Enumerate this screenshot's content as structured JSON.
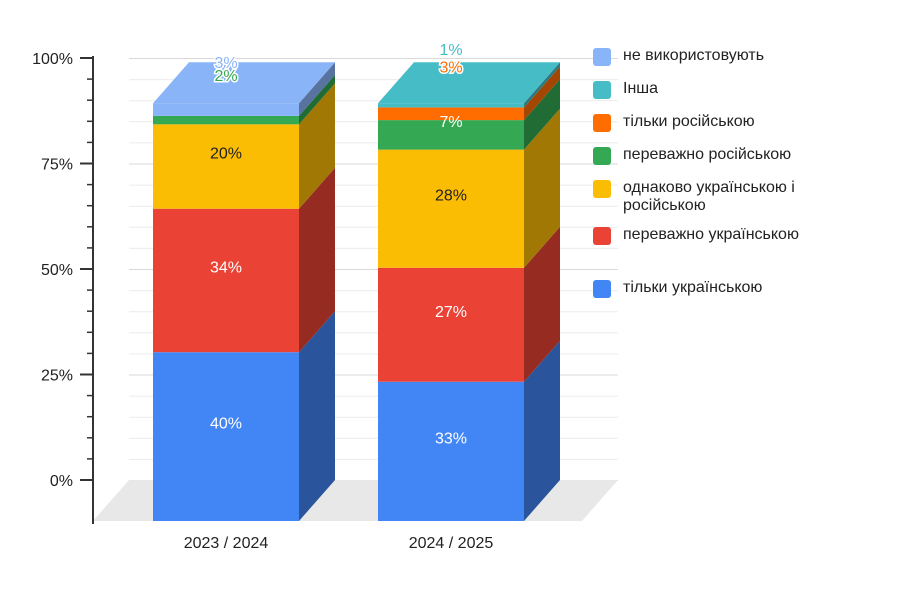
{
  "chart_data": {
    "type": "bar",
    "stacked": true,
    "three_d": true,
    "title": "",
    "xlabel": "",
    "ylabel": "",
    "ylim": [
      0,
      100
    ],
    "y_ticks": [
      "0%",
      "25%",
      "50%",
      "75%",
      "100%"
    ],
    "grid": true,
    "legend_position": "right",
    "categories": [
      "2023 / 2024",
      "2024 / 2025"
    ],
    "series": [
      {
        "name": "тільки українською",
        "color": "#4285f4",
        "values": [
          40,
          33
        ],
        "labels": [
          "40%",
          "33%"
        ]
      },
      {
        "name": "переважно українською",
        "color": "#ea4335",
        "values": [
          34,
          27
        ],
        "labels": [
          "34%",
          "27%"
        ]
      },
      {
        "name": "однаково українською і російською",
        "color": "#fbbc04",
        "values": [
          20,
          28
        ],
        "labels": [
          "20%",
          "28%"
        ]
      },
      {
        "name": "переважно російською",
        "color": "#34a853",
        "values": [
          2,
          7
        ],
        "labels": [
          "2%",
          "7%"
        ]
      },
      {
        "name": "тільки російською",
        "color": "#ff6d01",
        "values": [
          0,
          3
        ],
        "labels": [
          "",
          "3%"
        ]
      },
      {
        "name": "Інша",
        "color": "#46bdc6",
        "values": [
          0,
          1
        ],
        "labels": [
          "",
          "1%"
        ]
      },
      {
        "name": "не використовують",
        "color": "#8ab4f8",
        "values": [
          3,
          0
        ],
        "labels": [
          "3%",
          ""
        ]
      }
    ]
  }
}
